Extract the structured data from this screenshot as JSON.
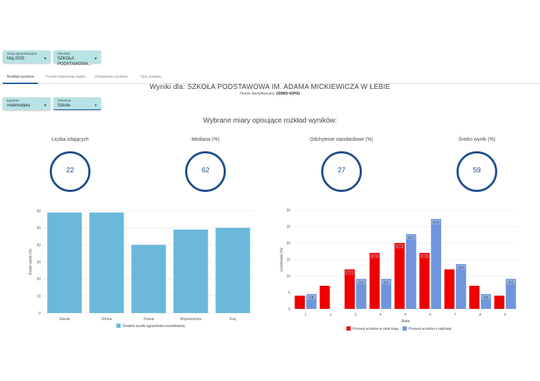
{
  "filters": {
    "exam_session": {
      "label": "Sesja egzaminacyjna",
      "value": "Maj 2025"
    },
    "school_type": {
      "label": "Placówki",
      "value": "SZKOŁA PODSTAWOWA..."
    },
    "exam": {
      "label": "Egzamin",
      "value": "matematyka"
    },
    "compare": {
      "label": "Odnośnik",
      "value": "Szkoła"
    }
  },
  "tabs": [
    {
      "label": "Rozkład wyników"
    },
    {
      "label": "Poziom wykonania zadań"
    },
    {
      "label": "Zestawienie wyników"
    },
    {
      "label": "Opis zestawu"
    }
  ],
  "header": {
    "title": "Wyniki dla: SZKOŁA PODSTAWOWA IM. ADAMA MICKIEWICZA W ŁEBIE",
    "id_label": "Numer identyfikacyjny:",
    "id_value": "220802-01P0G",
    "section_title": "Wybrane miary opisujące rozkład wyników:"
  },
  "metrics": [
    {
      "label": "Liczba zdających",
      "value": "22"
    },
    {
      "label": "Mediana (%)",
      "value": "62"
    },
    {
      "label": "Odchylenie standardowe (%)",
      "value": "27"
    },
    {
      "label": "Średni wynik (%)",
      "value": "59"
    }
  ],
  "colors": {
    "bar_left": "#6bb8dc",
    "red": "#ee0000",
    "blue": "#6f96dc",
    "ring": "#1f4c8c"
  },
  "chart_data": [
    {
      "type": "bar",
      "categories": [
        "Szkoła",
        "Gmina",
        "Powiat",
        "Województwo",
        "Kraj"
      ],
      "values": [
        59,
        59,
        40,
        49,
        50
      ],
      "ylabel": "Średni wynik (%)",
      "xlabel": "",
      "ylim": [
        0,
        60
      ],
      "yticks": [
        0,
        10,
        20,
        30,
        40,
        50,
        60
      ],
      "legend": {
        "position": "bottom",
        "label": "Średnie wyniki egzaminów ósmoklasisty"
      },
      "grid": true
    },
    {
      "type": "bar",
      "categories": [
        "1",
        "2",
        "3",
        "4",
        "5",
        "6",
        "7",
        "8",
        "9"
      ],
      "xlabel": "Skala",
      "ylabel": "Liczebność (%)",
      "ylim": [
        0,
        30
      ],
      "yticks": [
        0,
        5,
        10,
        15,
        20,
        25,
        30
      ],
      "grid": true,
      "legend": {
        "position": "bottom"
      },
      "series": [
        {
          "name": "Procent uczniów w skali kraju",
          "values": [
            4,
            7,
            12,
            17,
            20,
            17,
            12,
            7,
            4
          ],
          "labels": [
            "",
            "",
            "12.1",
            "17",
            "20",
            "17",
            "",
            "",
            ""
          ]
        },
        {
          "name": "Procent uczniów z oddziału",
          "values": [
            4.5,
            0,
            9.1,
            9.1,
            22.7,
            27.3,
            13.6,
            4.5,
            9.1
          ],
          "labels": [
            "4.5",
            "",
            "9.1",
            "9.1",
            "22.7",
            "27.3",
            "13.6",
            "4.5",
            "9.1"
          ]
        }
      ]
    }
  ]
}
